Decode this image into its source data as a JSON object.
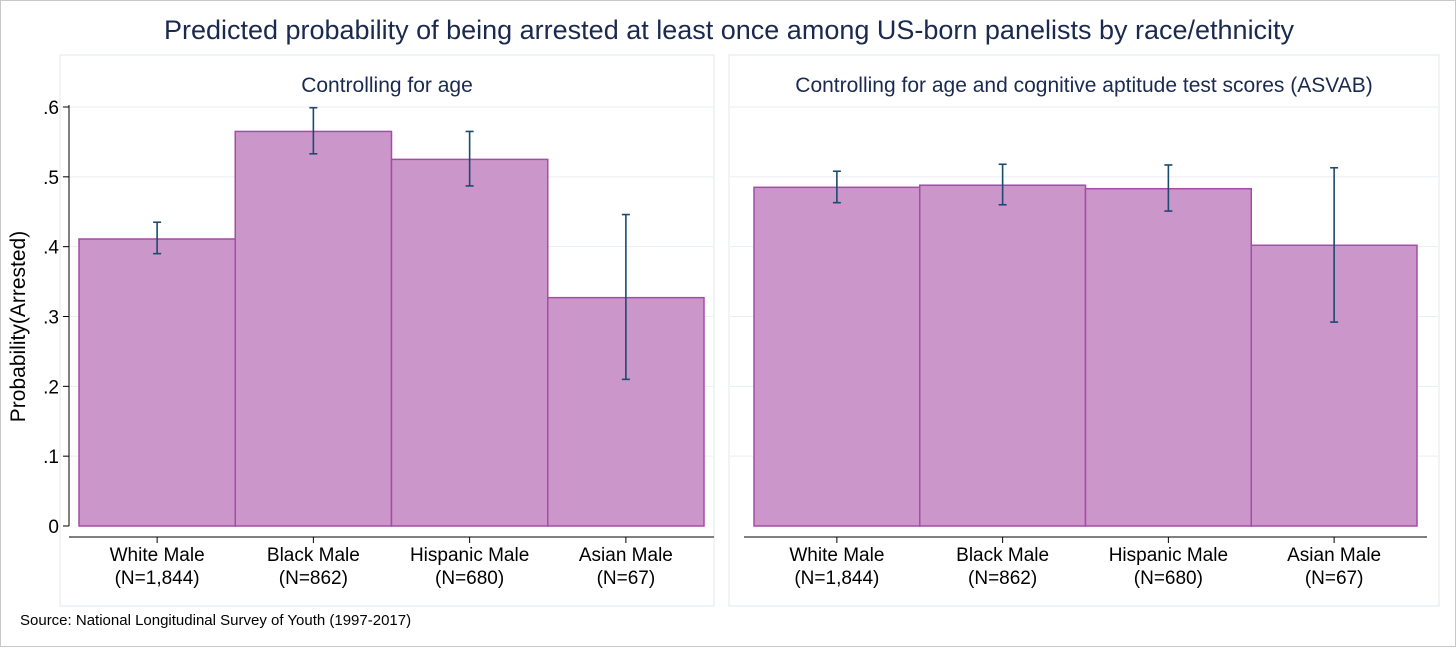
{
  "title": "Predicted probability of being arrested at least once among US-born panelists by race/ethnicity",
  "source": "Source: National Longitudinal Survey of Youth (1997-2017)",
  "colors": {
    "bar_fill": "#cb97cb",
    "bar_edge": "#a54ca5",
    "error_bar": "#1a4a6e",
    "title": "#1a2a4f"
  },
  "chart_data": [
    {
      "type": "bar",
      "title": "Controlling for age",
      "ylabel": "Probability(Arrested)",
      "ylim": [
        0,
        0.6
      ],
      "yticks": [
        0,
        0.1,
        0.2,
        0.3,
        0.4,
        0.5,
        0.6
      ],
      "ytick_labels": [
        "0",
        ".1",
        ".2",
        ".3",
        ".4",
        ".5",
        ".6"
      ],
      "grid": true,
      "categories": [
        [
          "White Male",
          "(N=1,844)"
        ],
        [
          "Black Male",
          "(N=862)"
        ],
        [
          "Hispanic Male",
          "(N=680)"
        ],
        [
          "Asian Male",
          "(N=67)"
        ]
      ],
      "values": [
        0.411,
        0.565,
        0.525,
        0.327
      ],
      "error_low": [
        0.39,
        0.533,
        0.487,
        0.21
      ],
      "error_high": [
        0.435,
        0.599,
        0.565,
        0.446
      ]
    },
    {
      "type": "bar",
      "title": "Controlling for age and cognitive aptitude test scores (ASVAB)",
      "ylabel": "",
      "ylim": [
        0,
        0.6
      ],
      "yticks": [
        0,
        0.1,
        0.2,
        0.3,
        0.4,
        0.5,
        0.6
      ],
      "ytick_labels": [],
      "grid": true,
      "categories": [
        [
          "White Male",
          "(N=1,844)"
        ],
        [
          "Black Male",
          "(N=862)"
        ],
        [
          "Hispanic Male",
          "(N=680)"
        ],
        [
          "Asian Male",
          "(N=67)"
        ]
      ],
      "values": [
        0.485,
        0.488,
        0.483,
        0.402
      ],
      "error_low": [
        0.463,
        0.46,
        0.451,
        0.292
      ],
      "error_high": [
        0.508,
        0.518,
        0.517,
        0.513
      ]
    }
  ]
}
